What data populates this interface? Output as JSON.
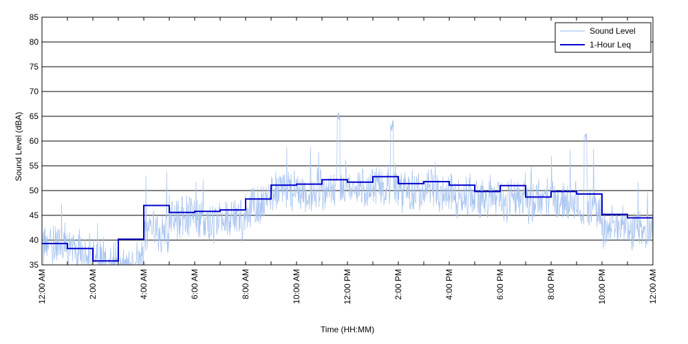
{
  "chart_data": {
    "type": "line",
    "title": "",
    "xlabel": "Time (HH:MM)",
    "ylabel": "Sound Level (dBA)",
    "xlim": [
      0,
      24
    ],
    "ylim": [
      35,
      85
    ],
    "yticks": [
      35,
      40,
      45,
      50,
      55,
      60,
      65,
      70,
      75,
      80,
      85
    ],
    "xtick_values": [
      0,
      2,
      4,
      6,
      8,
      10,
      12,
      14,
      16,
      18,
      20,
      22,
      24
    ],
    "xtick_labels": [
      "12:00 AM",
      "2:00 AM",
      "4:00 AM",
      "6:00 AM",
      "8:00 AM",
      "10:00 AM",
      "12:00 PM",
      "2:00 PM",
      "4:00 PM",
      "6:00 PM",
      "8:00 PM",
      "10:00 PM",
      "12:00 AM"
    ],
    "grid": "horizontal",
    "legend": "top-right",
    "series": [
      {
        "name": "Sound Level",
        "color": "#a8c4f0",
        "style": "thin-line",
        "baseline_hourly": [
          39,
          38,
          36,
          34,
          41,
          45,
          44,
          44,
          46,
          50,
          50,
          50,
          50,
          51,
          50,
          50,
          49,
          48,
          48,
          48,
          48,
          47,
          43,
          42
        ]
      },
      {
        "name": "1-Hour Leq",
        "color": "#0000cc",
        "style": "step",
        "hours": [
          0,
          1,
          2,
          3,
          4,
          5,
          6,
          7,
          8,
          9,
          10,
          11,
          12,
          13,
          14,
          15,
          16,
          17,
          18,
          19,
          20,
          21,
          22,
          23
        ],
        "values": [
          39.3,
          38.3,
          35.8,
          40.2,
          47.0,
          45.6,
          45.8,
          46.1,
          48.3,
          51.1,
          51.3,
          52.2,
          51.7,
          52.8,
          51.4,
          51.8,
          51.1,
          49.8,
          51.0,
          48.7,
          49.8,
          49.3,
          45.2,
          44.5
        ]
      }
    ]
  }
}
